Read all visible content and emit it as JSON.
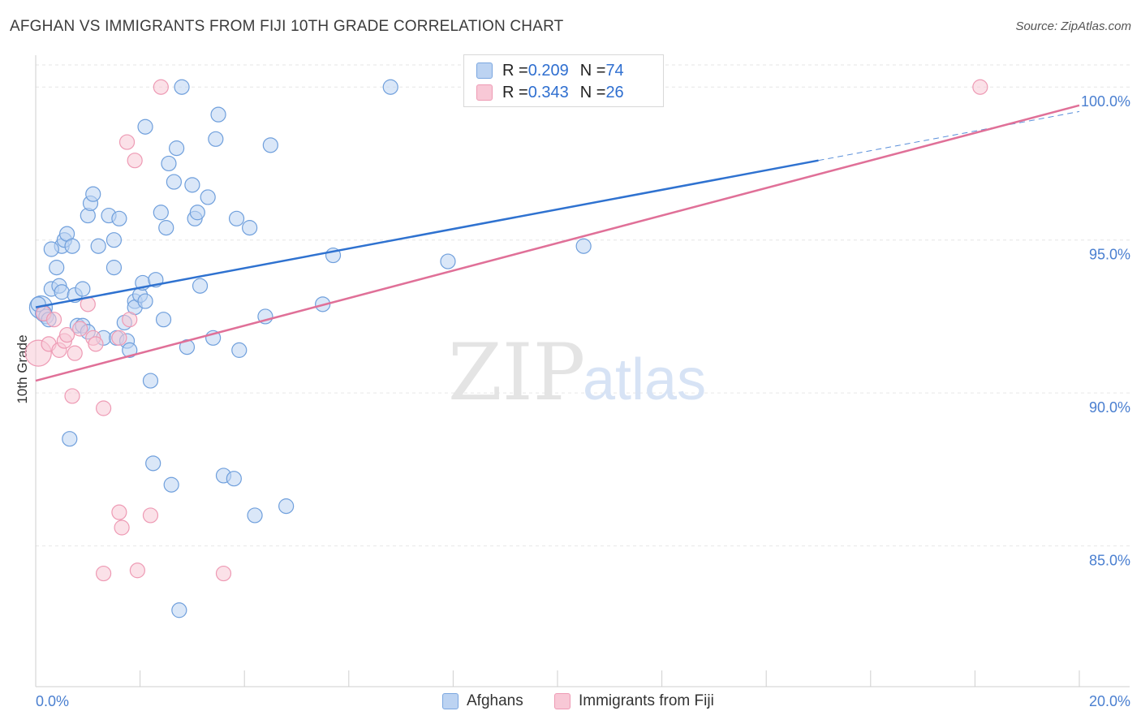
{
  "header": {
    "title": "AFGHAN VS IMMIGRANTS FROM FIJI 10TH GRADE CORRELATION CHART",
    "source": "Source: ZipAtlas.com"
  },
  "legend": {
    "rows": [
      {
        "r_label": "R = ",
        "r_value": "0.209",
        "n_label": "N = ",
        "n_value": "74",
        "color": "#7aa6e0"
      },
      {
        "r_label": "R = ",
        "r_value": "0.343",
        "n_label": "N = ",
        "n_value": "26",
        "color": "#ee9ab4"
      }
    ],
    "bottom": [
      "Afghans",
      "Immigrants from Fiji"
    ]
  },
  "watermark": {
    "part1": "ZIP",
    "part2": "atlas"
  },
  "colors": {
    "blue_fill": "#bcd3f2",
    "blue_stroke": "#6f9fdc",
    "blue_line": "#2f72d0",
    "pink_fill": "#f8c8d6",
    "pink_stroke": "#ee9ab4",
    "pink_line": "#e07098",
    "grid": "#e6e6e6",
    "tick_text": "#4a7fd0"
  },
  "chart_data": {
    "type": "scatter",
    "title": "AFGHAN VS IMMIGRANTS FROM FIJI 10TH GRADE CORRELATION CHART",
    "xlabel": "",
    "ylabel": "10th Grade",
    "xlim": [
      0,
      20
    ],
    "ylim": [
      80.4,
      101.2
    ],
    "x_tick_labels": [
      "0.0%",
      "20.0%"
    ],
    "y_ticks": [
      85,
      90,
      95,
      100
    ],
    "y_tick_labels": [
      "85.0%",
      "90.0%",
      "95.0%",
      "100.0%"
    ],
    "series": [
      {
        "name": "Afghans",
        "r": 0.209,
        "n": 74,
        "trend": {
          "x0": 0,
          "y0": 92.8,
          "x1": 15.0,
          "y1": 97.6,
          "dash_to_x": 20,
          "dash_to_y": 99.2
        },
        "points": [
          [
            0.1,
            92.8,
            14
          ],
          [
            0.15,
            92.6,
            10
          ],
          [
            0.2,
            92.5,
            9
          ],
          [
            0.3,
            93.4,
            9
          ],
          [
            0.4,
            94.1,
            9
          ],
          [
            0.5,
            94.8,
            9
          ],
          [
            0.55,
            95.0,
            9
          ],
          [
            0.6,
            95.2,
            9
          ],
          [
            0.7,
            94.8,
            9
          ],
          [
            0.3,
            94.7,
            9
          ],
          [
            0.45,
            93.5,
            9
          ],
          [
            0.5,
            93.3,
            9
          ],
          [
            0.75,
            93.2,
            9
          ],
          [
            0.9,
            93.4,
            9
          ],
          [
            0.8,
            92.2,
            9
          ],
          [
            0.9,
            92.2,
            9
          ],
          [
            1.0,
            95.8,
            9
          ],
          [
            1.05,
            96.2,
            9
          ],
          [
            1.1,
            96.5,
            9
          ],
          [
            1.2,
            94.8,
            9
          ],
          [
            1.3,
            91.8,
            9
          ],
          [
            1.4,
            95.8,
            9
          ],
          [
            1.5,
            95.0,
            9
          ],
          [
            1.5,
            94.1,
            9
          ],
          [
            1.55,
            91.8,
            9
          ],
          [
            1.6,
            95.7,
            9
          ],
          [
            1.7,
            92.3,
            9
          ],
          [
            1.75,
            91.7,
            9
          ],
          [
            1.8,
            91.4,
            9
          ],
          [
            1.9,
            93.0,
            9
          ],
          [
            1.9,
            92.8,
            9
          ],
          [
            2.0,
            93.2,
            9
          ],
          [
            2.05,
            93.6,
            9
          ],
          [
            2.1,
            93.0,
            9
          ],
          [
            2.1,
            98.7,
            9
          ],
          [
            2.2,
            90.4,
            9
          ],
          [
            2.25,
            87.7,
            9
          ],
          [
            2.3,
            93.7,
            9
          ],
          [
            2.4,
            95.9,
            9
          ],
          [
            2.45,
            92.4,
            9
          ],
          [
            2.5,
            95.4,
            9
          ],
          [
            2.55,
            97.5,
            9
          ],
          [
            2.6,
            87.0,
            9
          ],
          [
            2.65,
            96.9,
            9
          ],
          [
            2.7,
            98.0,
            9
          ],
          [
            2.75,
            82.9,
            9
          ],
          [
            2.8,
            100.0,
            9
          ],
          [
            2.9,
            91.5,
            9
          ],
          [
            3.0,
            96.8,
            9
          ],
          [
            3.05,
            95.7,
            9
          ],
          [
            3.1,
            95.9,
            9
          ],
          [
            3.15,
            93.5,
            9
          ],
          [
            3.3,
            96.4,
            9
          ],
          [
            3.4,
            91.8,
            9
          ],
          [
            3.45,
            98.3,
            9
          ],
          [
            3.5,
            99.1,
            9
          ],
          [
            3.6,
            87.3,
            9
          ],
          [
            3.8,
            87.2,
            9
          ],
          [
            3.85,
            95.7,
            9
          ],
          [
            3.9,
            91.4,
            9
          ],
          [
            4.1,
            95.4,
            9
          ],
          [
            4.2,
            86.0,
            9
          ],
          [
            4.4,
            92.5,
            9
          ],
          [
            4.5,
            98.1,
            9
          ],
          [
            4.8,
            86.3,
            9
          ],
          [
            5.5,
            92.9,
            9
          ],
          [
            5.7,
            94.5,
            9
          ],
          [
            6.8,
            100.0,
            9
          ],
          [
            7.9,
            94.3,
            9
          ],
          [
            10.5,
            94.8,
            9
          ],
          [
            0.05,
            92.9,
            9
          ],
          [
            0.25,
            92.4,
            9
          ],
          [
            0.65,
            88.5,
            9
          ],
          [
            1.0,
            92.0,
            9
          ]
        ]
      },
      {
        "name": "Immigrants from Fiji",
        "r": 0.343,
        "n": 26,
        "trend": {
          "x0": 0,
          "y0": 90.4,
          "x1": 20,
          "y1": 99.4
        },
        "points": [
          [
            0.05,
            91.3,
            16
          ],
          [
            0.15,
            92.6,
            9
          ],
          [
            0.25,
            91.6,
            9
          ],
          [
            0.35,
            92.4,
            9
          ],
          [
            0.45,
            91.4,
            9
          ],
          [
            0.55,
            91.7,
            9
          ],
          [
            0.6,
            91.9,
            9
          ],
          [
            0.7,
            89.9,
            9
          ],
          [
            0.75,
            91.3,
            9
          ],
          [
            0.85,
            92.1,
            9
          ],
          [
            1.0,
            92.9,
            9
          ],
          [
            1.1,
            91.8,
            9
          ],
          [
            1.15,
            91.6,
            9
          ],
          [
            1.3,
            84.1,
            9
          ],
          [
            1.3,
            89.5,
            9
          ],
          [
            1.6,
            91.8,
            9
          ],
          [
            1.6,
            86.1,
            9
          ],
          [
            1.65,
            85.6,
            9
          ],
          [
            1.75,
            98.2,
            9
          ],
          [
            1.8,
            92.4,
            9
          ],
          [
            1.9,
            97.6,
            9
          ],
          [
            1.95,
            84.2,
            9
          ],
          [
            2.2,
            86.0,
            9
          ],
          [
            2.4,
            100.0,
            9
          ],
          [
            3.6,
            84.1,
            9
          ],
          [
            18.1,
            100.0,
            9
          ]
        ]
      }
    ]
  }
}
